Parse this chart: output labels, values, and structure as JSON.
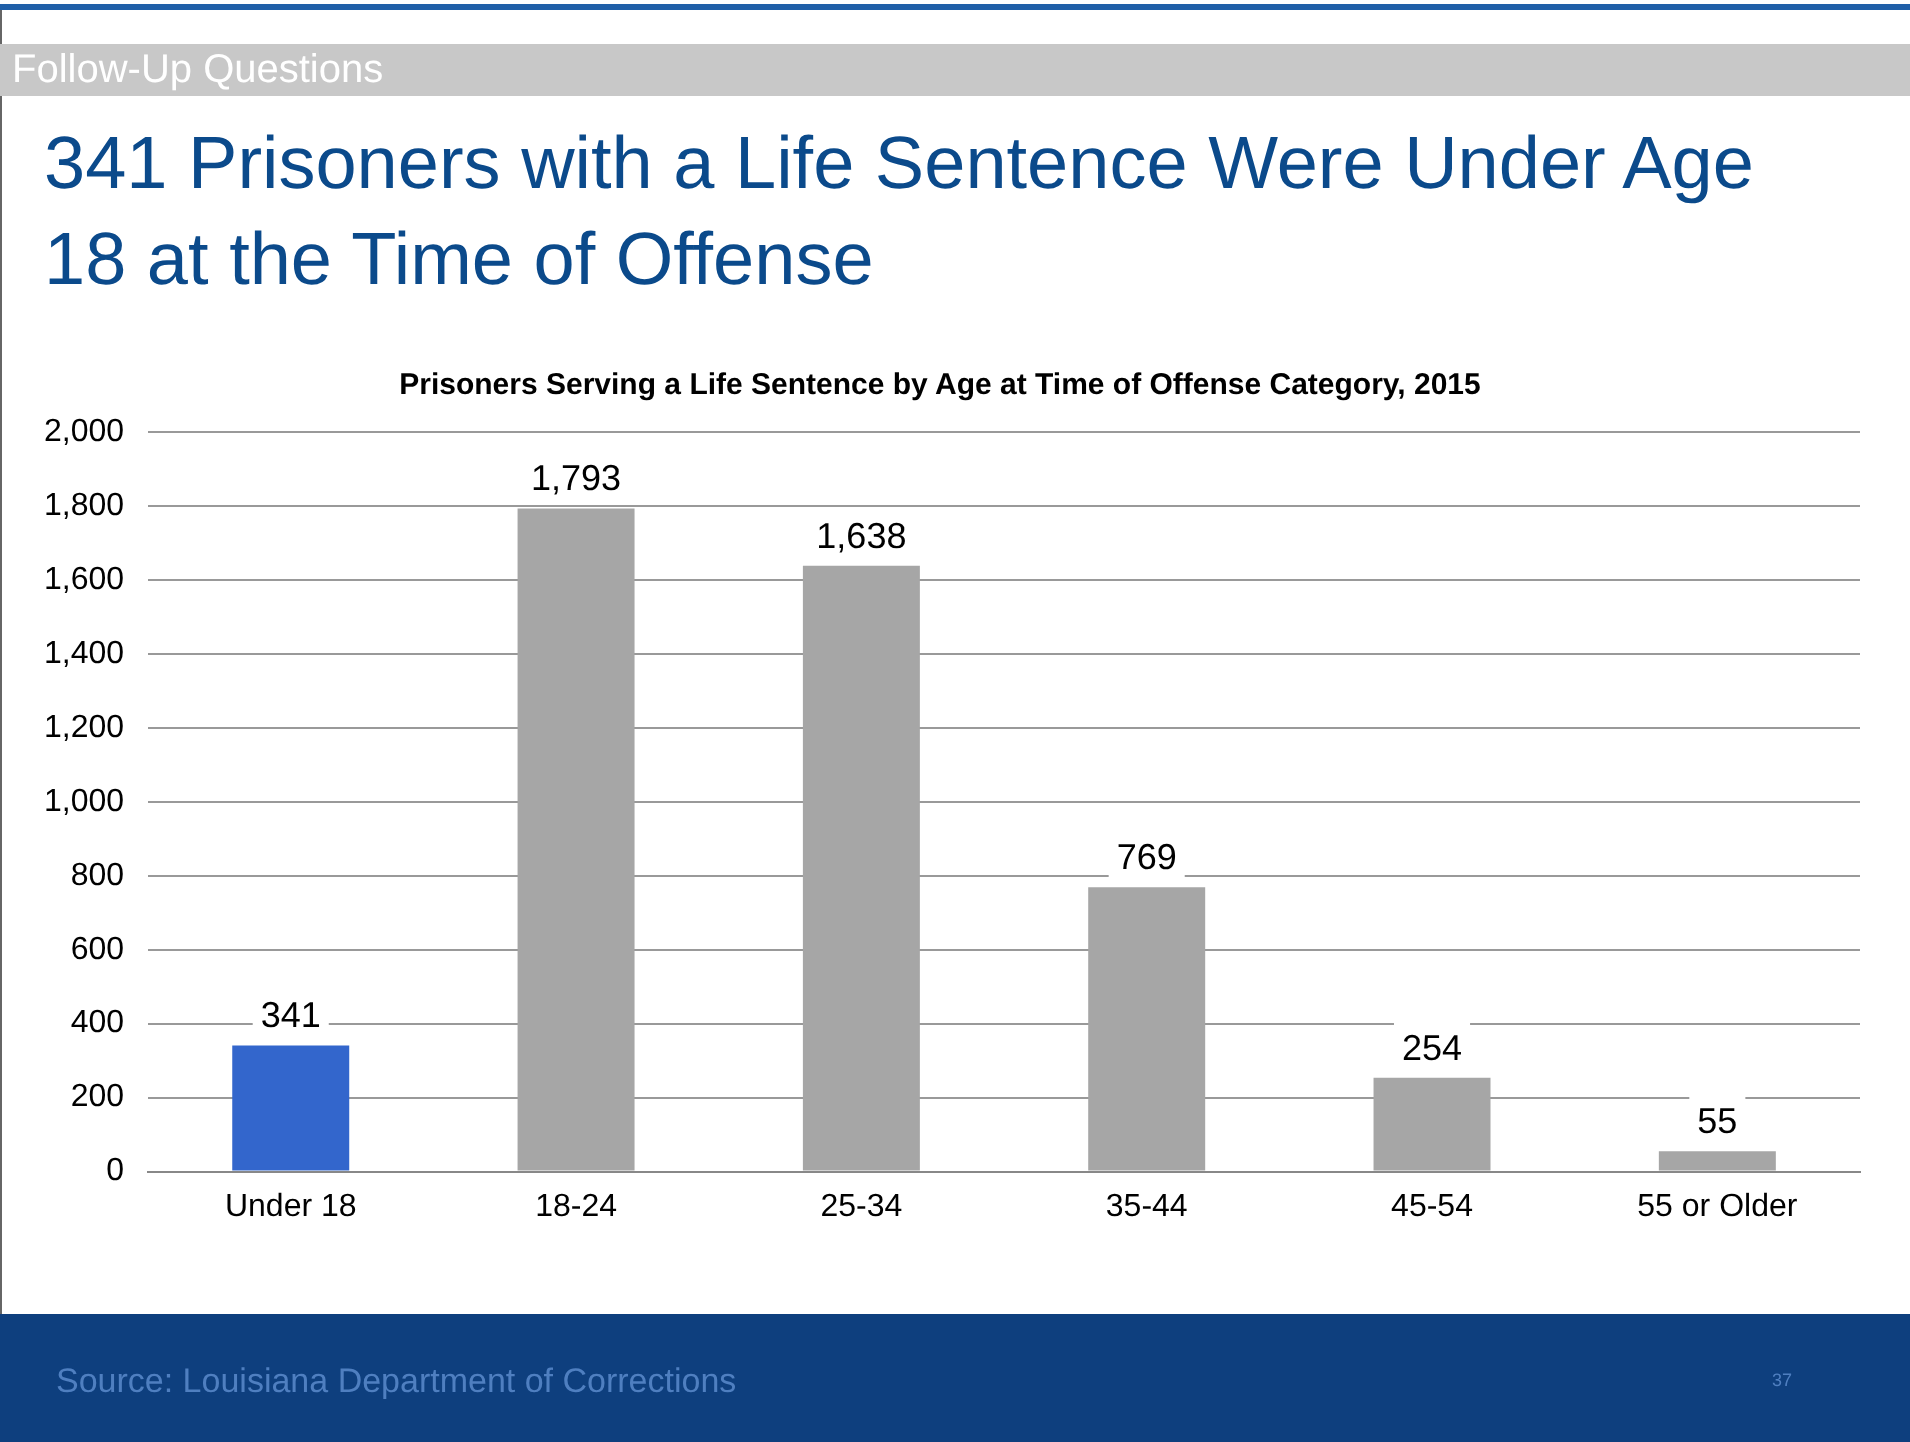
{
  "chart_data": {
    "type": "bar",
    "title": "341 Prisoners with a Life Sentence Were Under Age 18 at the Time of Offense",
    "subtitle": "Prisoners Serving a Life Sentence by Age at Time of Offense Category, 2015",
    "categories": [
      "Under 18",
      "18-24",
      "25-34",
      "35-44",
      "45-54",
      "55 or Older"
    ],
    "values": [
      341,
      1793,
      1638,
      769,
      254,
      55
    ],
    "colors": [
      "#3366cc",
      "#a6a6a6",
      "#a6a6a6",
      "#a6a6a6",
      "#a6a6a6",
      "#a6a6a6"
    ],
    "value_labels": [
      "341",
      "1,793",
      "1,638",
      "769",
      "254",
      "55"
    ],
    "ylim": [
      0,
      2000
    ],
    "yticks": [
      0,
      200,
      400,
      600,
      800,
      {
        "value": 1000,
        "label": "1,000"
      },
      {
        "value": 1200,
        "label": "1,200"
      },
      {
        "value": 1400,
        "label": "1,400"
      },
      {
        "value": 1600,
        "label": "1,600"
      },
      {
        "value": 1800,
        "label": "1,800"
      },
      {
        "value": 2000,
        "label": "2,000"
      }
    ],
    "grid": "y",
    "legend": false,
    "annotations": [
      "Follow-Up Questions",
      "Source: Louisiana Department of Corrections",
      "37"
    ]
  }
}
